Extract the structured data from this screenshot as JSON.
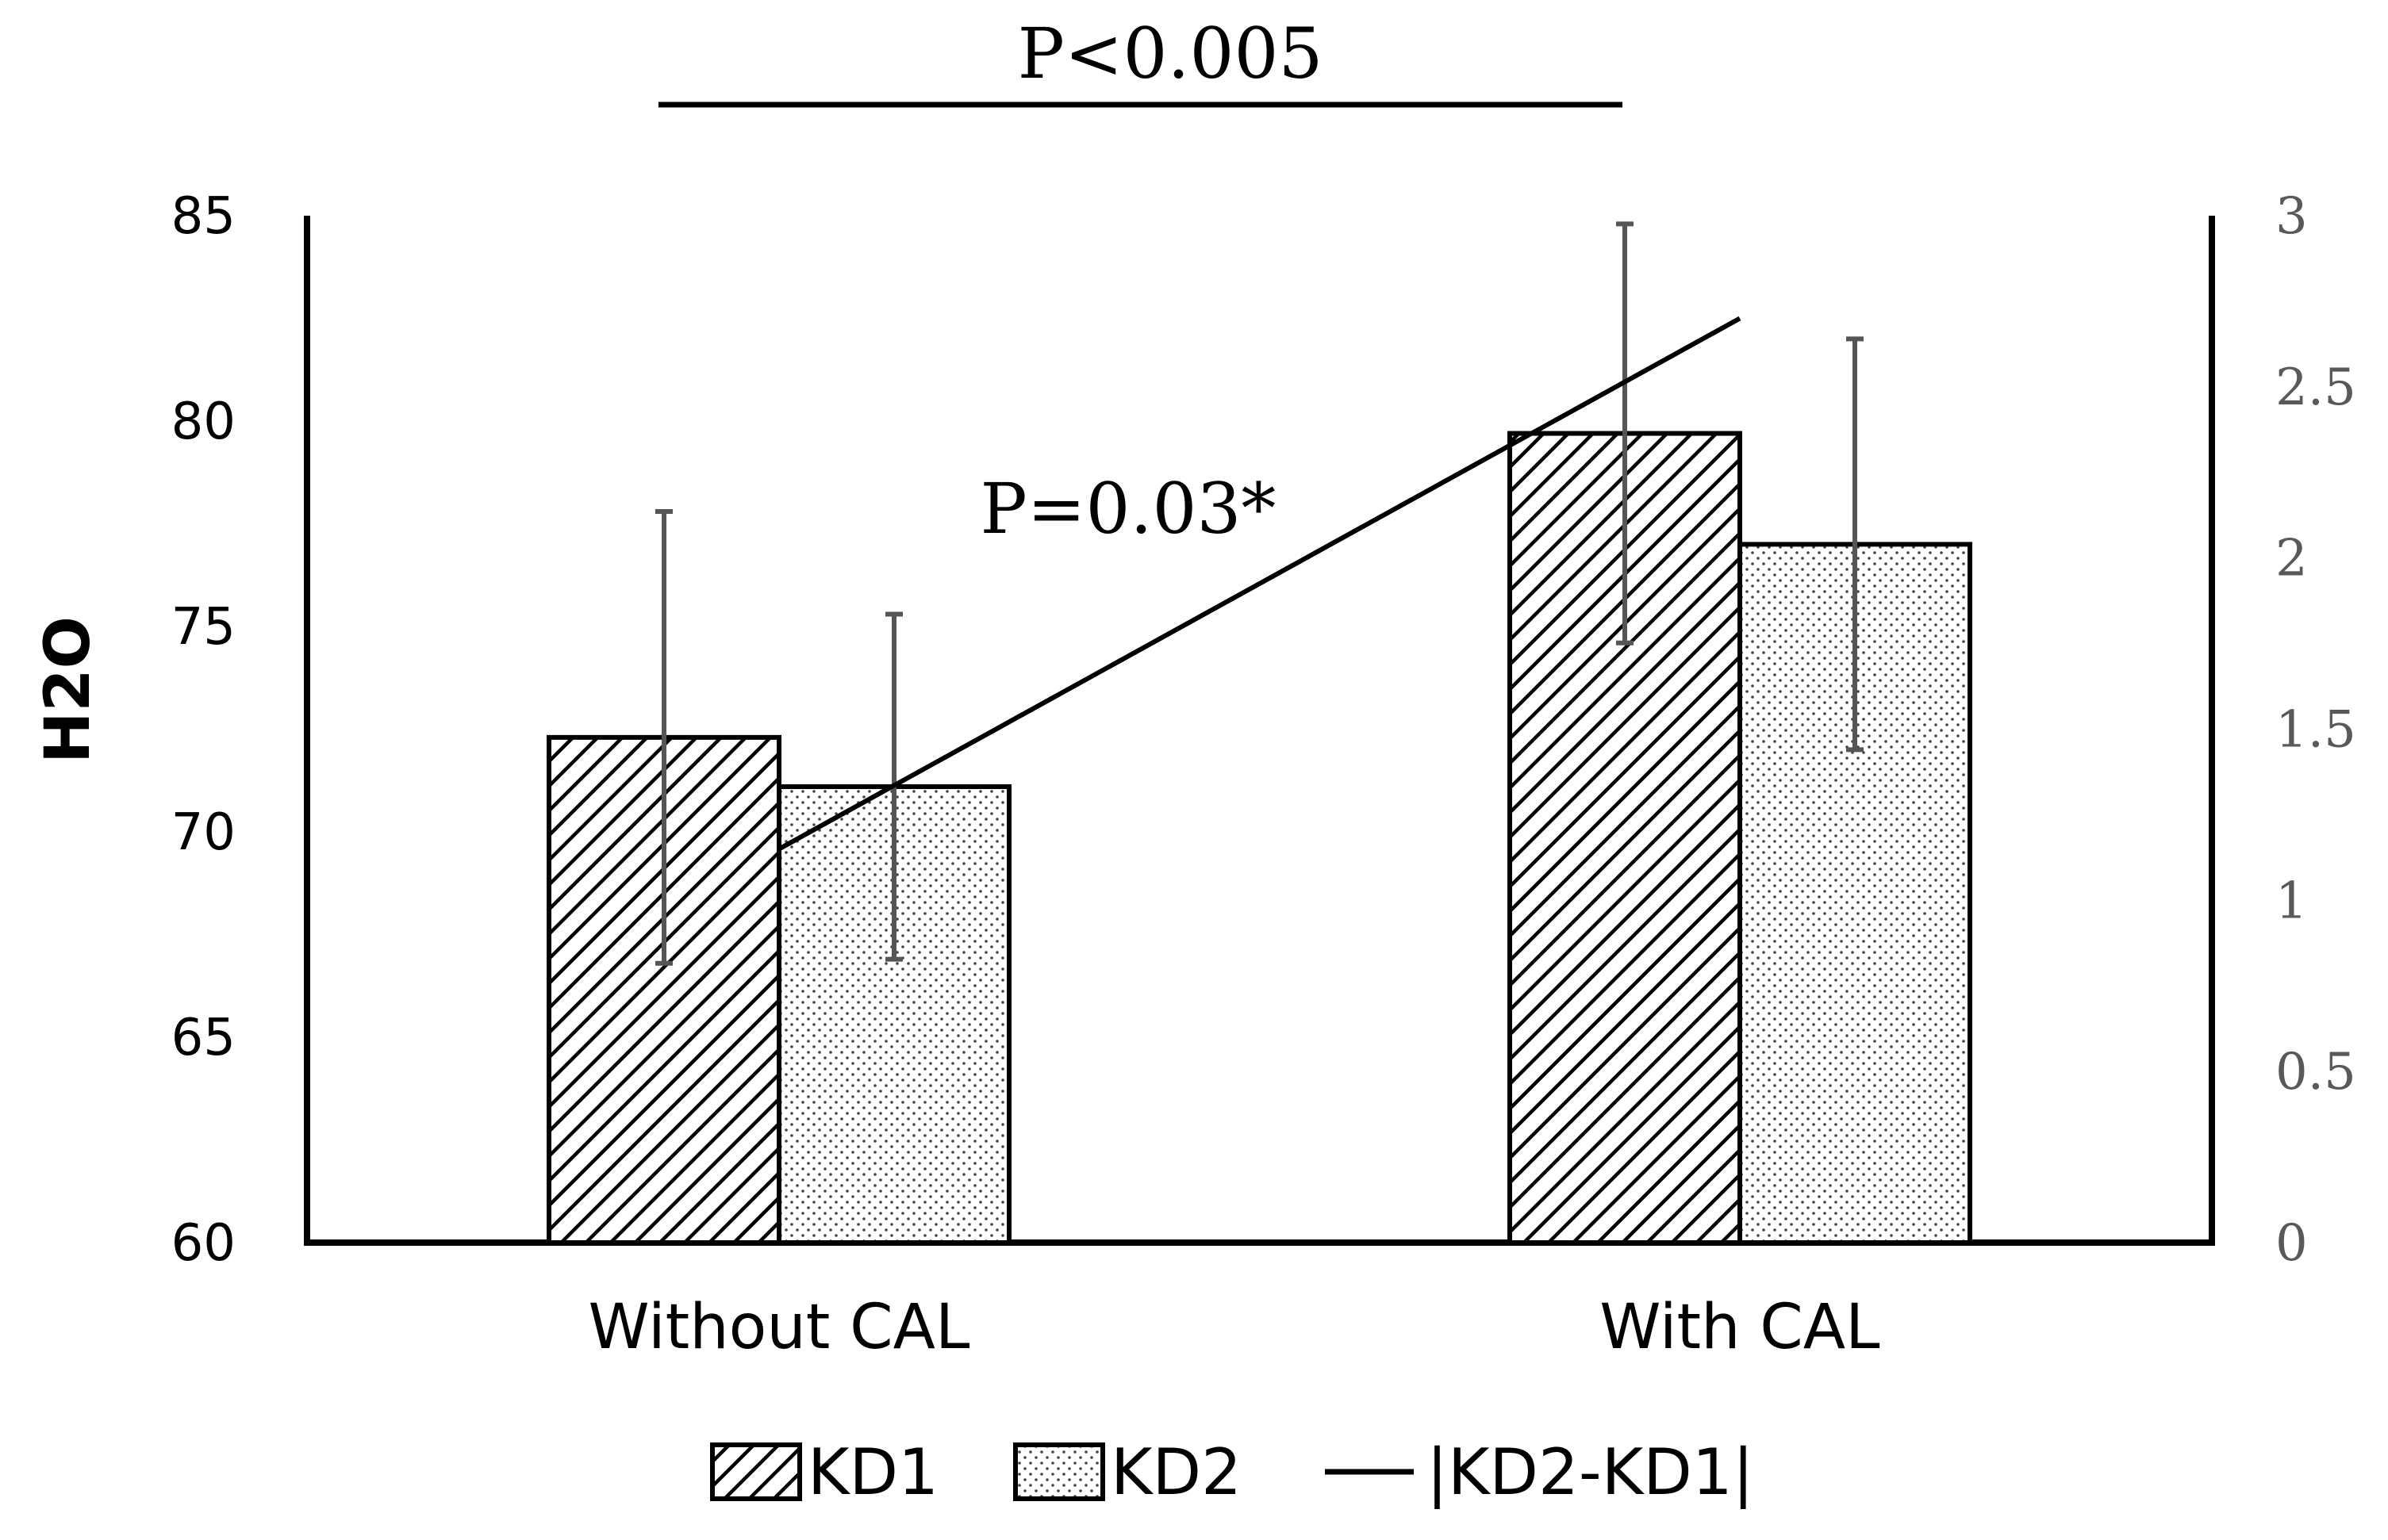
{
  "chart_data": {
    "type": "bar",
    "categories": [
      "Without CAL",
      "With CAL"
    ],
    "ylabel": "H2O",
    "ylim": [
      60,
      85
    ],
    "y_ticks": [
      "60",
      "65",
      "70",
      "75",
      "80",
      "85"
    ],
    "y2lim": [
      0,
      3
    ],
    "y2_ticks": [
      "0",
      "0.5",
      "1",
      "1.5",
      "2",
      "2.5",
      "3"
    ],
    "series": [
      {
        "name": "KD1",
        "type": "bar",
        "pattern": "diagonal-hatch",
        "values": [
          72.3,
          79.7
        ],
        "error": [
          5.5,
          5.1
        ]
      },
      {
        "name": "KD2",
        "type": "bar",
        "pattern": "dots",
        "values": [
          71.1,
          77.0
        ],
        "error": [
          4.2,
          5.0
        ]
      },
      {
        "name": "|KD2-KD1|",
        "type": "line",
        "axis": "right",
        "values": [
          1.15,
          2.7
        ]
      }
    ],
    "annotations": {
      "top_bracket": "P<0.005",
      "line_label": "P=0.03*"
    },
    "legend_position": "bottom",
    "grid": false,
    "colors": {
      "bar_stroke": "#000000",
      "error_bar": "#555555",
      "right_axis_text": "#595959"
    }
  }
}
